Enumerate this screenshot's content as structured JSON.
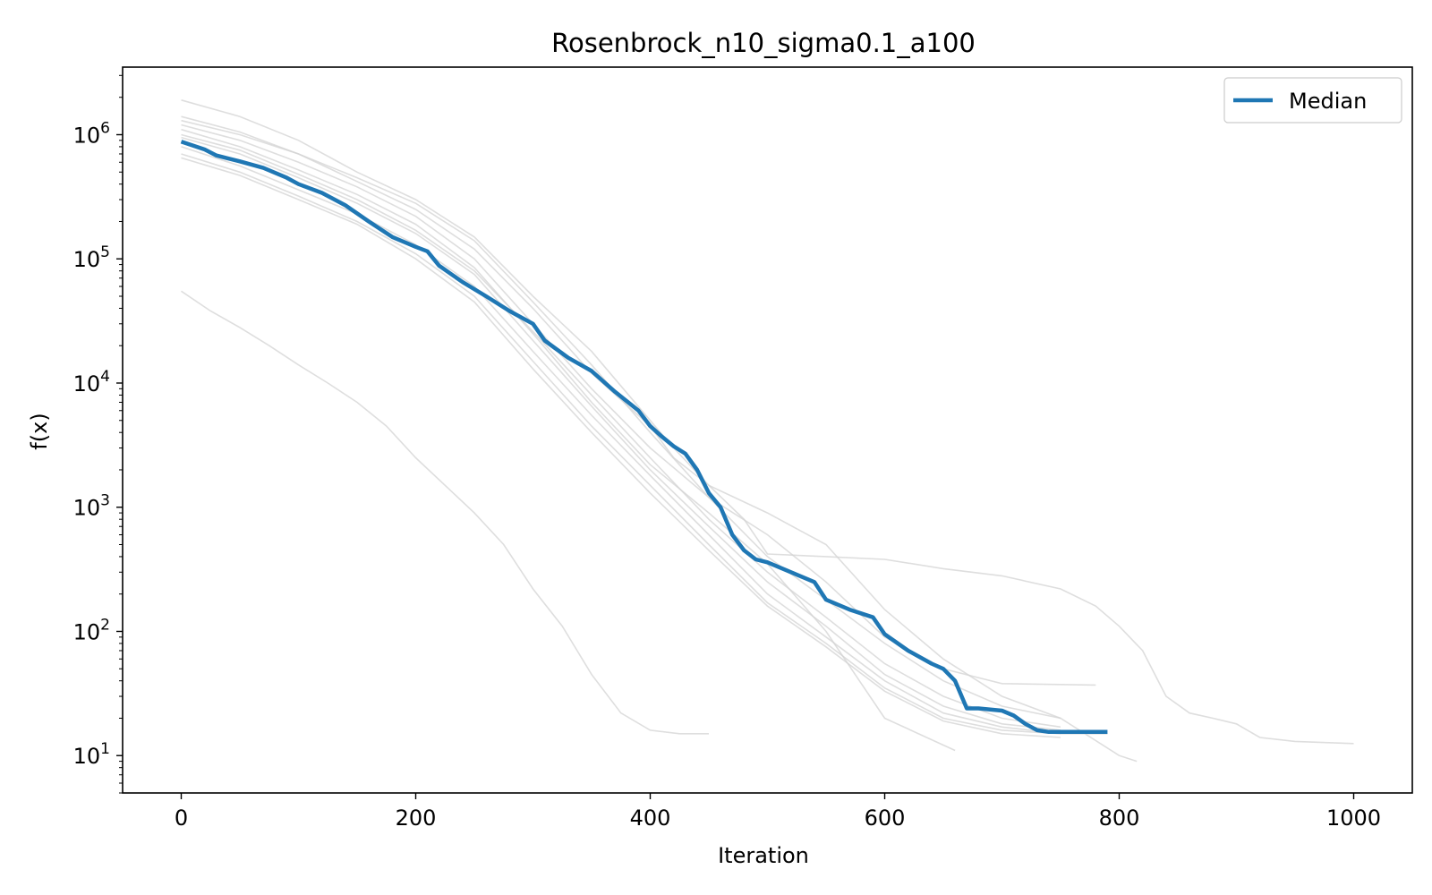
{
  "chart_data": {
    "type": "line",
    "title": "Rosenbrock_n10_sigma0.1_a100",
    "xlabel": "Iteration",
    "ylabel": "f(x)",
    "xlim": [
      -50,
      1050
    ],
    "ylim": [
      5,
      3500000
    ],
    "yscale": "log",
    "grid": false,
    "x_ticks": [
      0,
      200,
      400,
      600,
      800,
      1000
    ],
    "x_tick_labels": [
      "0",
      "200",
      "400",
      "600",
      "800",
      "1000"
    ],
    "y_ticks": [
      10,
      100,
      1000,
      10000,
      100000,
      1000000
    ],
    "y_tick_labels": [
      {
        "base": "10",
        "exp": "1"
      },
      {
        "base": "10",
        "exp": "2"
      },
      {
        "base": "10",
        "exp": "3"
      },
      {
        "base": "10",
        "exp": "4"
      },
      {
        "base": "10",
        "exp": "5"
      },
      {
        "base": "10",
        "exp": "6"
      }
    ],
    "legend": {
      "position": "top-right",
      "entries": [
        "Median"
      ]
    },
    "colors": {
      "median": "#1f77b4",
      "runs": "#d3d3d3"
    },
    "series": [
      {
        "name": "Median",
        "role": "median",
        "x": [
          0,
          20,
          30,
          50,
          70,
          90,
          100,
          120,
          140,
          160,
          180,
          200,
          210,
          220,
          240,
          260,
          280,
          300,
          310,
          330,
          350,
          370,
          390,
          400,
          410,
          420,
          430,
          440,
          450,
          460,
          470,
          480,
          490,
          500,
          520,
          540,
          550,
          570,
          590,
          600,
          620,
          640,
          650,
          660,
          670,
          680,
          700,
          710,
          720,
          730,
          740,
          760,
          790
        ],
        "y": [
          880000,
          760000,
          680000,
          610000,
          540000,
          450000,
          400000,
          340000,
          270000,
          200000,
          150000,
          125000,
          115000,
          88000,
          65000,
          50000,
          38000,
          30000,
          22000,
          16000,
          12500,
          8500,
          6000,
          4500,
          3700,
          3100,
          2700,
          2000,
          1300,
          1000,
          600,
          450,
          380,
          360,
          300,
          250,
          180,
          150,
          130,
          95,
          70,
          55,
          50,
          40,
          24,
          24,
          23,
          21,
          18,
          16,
          15.5,
          15.5,
          15.5
        ]
      },
      {
        "role": "run",
        "x": [
          0,
          50,
          100,
          150,
          200,
          250,
          300,
          350,
          400,
          420,
          450,
          480,
          500,
          550,
          600,
          650,
          700,
          750,
          780,
          800,
          820,
          840,
          860,
          880,
          900,
          920,
          950,
          1000
        ],
        "y": [
          1400000,
          1050000,
          700000,
          420000,
          250000,
          120000,
          40000,
          12000,
          4500,
          2500,
          1500,
          800,
          420,
          400,
          380,
          320,
          280,
          220,
          160,
          110,
          70,
          30,
          22,
          20,
          18,
          14,
          13,
          12.5
        ]
      },
      {
        "role": "run",
        "x": [
          0,
          50,
          100,
          150,
          200,
          250,
          300,
          350,
          400,
          420,
          450,
          500,
          550,
          600,
          650,
          700,
          750,
          800,
          815
        ],
        "y": [
          1900000,
          1400000,
          900000,
          500000,
          300000,
          150000,
          50000,
          18000,
          5000,
          3000,
          1500,
          900,
          500,
          150,
          60,
          30,
          20,
          10,
          9
        ]
      },
      {
        "role": "run",
        "x": [
          0,
          50,
          100,
          150,
          200,
          250,
          300,
          350,
          400,
          450,
          500,
          550,
          600,
          650,
          700,
          780
        ],
        "y": [
          1200000,
          900000,
          600000,
          380000,
          220000,
          100000,
          30000,
          9000,
          3000,
          1200,
          600,
          250,
          90,
          50,
          38,
          37
        ]
      },
      {
        "role": "run",
        "x": [
          0,
          50,
          100,
          150,
          200,
          250,
          300,
          350,
          400,
          450,
          500,
          550,
          600,
          660
        ],
        "y": [
          1100000,
          800000,
          520000,
          330000,
          190000,
          85000,
          25000,
          7000,
          2200,
          900,
          350,
          100,
          20,
          11
        ]
      },
      {
        "role": "run",
        "x": [
          0,
          50,
          100,
          150,
          200,
          250,
          300,
          350,
          400,
          450,
          500,
          550,
          600,
          650,
          700,
          750
        ],
        "y": [
          950000,
          700000,
          450000,
          280000,
          160000,
          75000,
          22000,
          6500,
          2000,
          700,
          250,
          110,
          45,
          25,
          18,
          16
        ]
      },
      {
        "role": "run",
        "x": [
          0,
          50,
          100,
          150,
          200,
          250,
          300,
          350,
          400,
          450,
          500,
          550,
          600,
          650,
          700,
          750
        ],
        "y": [
          800000,
          560000,
          360000,
          230000,
          130000,
          60000,
          18000,
          5500,
          1800,
          600,
          200,
          90,
          40,
          22,
          17,
          15
        ]
      },
      {
        "role": "run",
        "x": [
          0,
          50,
          100,
          150,
          200,
          250,
          300,
          350,
          400,
          450,
          500,
          550,
          600,
          650,
          700,
          750,
          790
        ],
        "y": [
          700000,
          500000,
          320000,
          200000,
          110000,
          50000,
          15000,
          4500,
          1500,
          500,
          170,
          80,
          35,
          20,
          16,
          15,
          15
        ]
      },
      {
        "role": "run",
        "x": [
          0,
          50,
          100,
          150,
          200,
          250,
          300,
          350,
          400,
          450,
          500,
          550,
          600,
          650,
          700,
          750
        ],
        "y": [
          650000,
          470000,
          300000,
          190000,
          100000,
          45000,
          13000,
          4000,
          1300,
          450,
          160,
          75,
          33,
          19,
          15,
          14
        ]
      },
      {
        "role": "run",
        "x": [
          0,
          50,
          100,
          150,
          200,
          250,
          300,
          350,
          400,
          450,
          500,
          550,
          600,
          650,
          700,
          750
        ],
        "y": [
          1300000,
          1000000,
          700000,
          450000,
          280000,
          140000,
          45000,
          14000,
          4000,
          1200,
          400,
          180,
          80,
          40,
          25,
          20
        ]
      },
      {
        "role": "run",
        "x": [
          0,
          50,
          100,
          150,
          200,
          250,
          300,
          350,
          400,
          450,
          500,
          550,
          600,
          650,
          700,
          750
        ],
        "y": [
          1000000,
          750000,
          480000,
          300000,
          170000,
          80000,
          26000,
          8000,
          2500,
          800,
          300,
          130,
          55,
          30,
          20,
          17
        ]
      },
      {
        "role": "run",
        "x": [
          0,
          25,
          50,
          75,
          100,
          125,
          150,
          175,
          200,
          225,
          250,
          275,
          300,
          325,
          350,
          375,
          400,
          425,
          450
        ],
        "y": [
          55000,
          38000,
          28000,
          20000,
          14000,
          10000,
          7000,
          4500,
          2500,
          1500,
          900,
          500,
          220,
          110,
          45,
          22,
          16,
          15,
          15
        ]
      }
    ]
  }
}
